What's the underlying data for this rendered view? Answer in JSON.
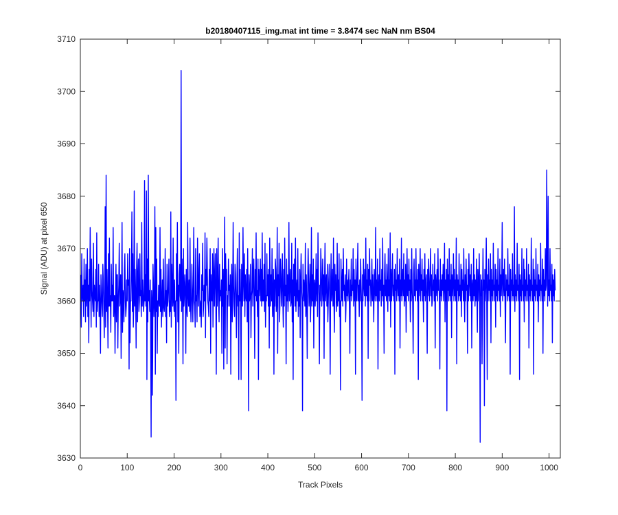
{
  "chart_data": {
    "type": "line",
    "title": "b20180407115_img.mat int time = 3.8474 sec  NaN nm BS04",
    "xlabel": "Track Pixels",
    "ylabel": "Signal (ADU) at pixel 650",
    "xlim": [
      0,
      1024
    ],
    "ylim": [
      3630,
      3710
    ],
    "xticks": [
      0,
      100,
      200,
      300,
      400,
      500,
      600,
      700,
      800,
      900,
      1000
    ],
    "yticks": [
      3630,
      3640,
      3650,
      3660,
      3670,
      3680,
      3690,
      3700,
      3710
    ],
    "grid": false,
    "legend": "none",
    "series": [
      {
        "color": "#0000ff",
        "x_start": 1,
        "x_step": 1,
        "values": [
          3665,
          3655,
          3669,
          3661,
          3660,
          3663,
          3657,
          3668,
          3660,
          3664,
          3656,
          3667,
          3659,
          3661,
          3670,
          3657,
          3663,
          3652,
          3666,
          3660,
          3674,
          3664,
          3655,
          3668,
          3662,
          3660,
          3658,
          3671,
          3657,
          3663,
          3661,
          3660,
          3666,
          3655,
          3673,
          3658,
          3660,
          3660,
          3667,
          3657,
          3663,
          3659,
          3650,
          3665,
          3662,
          3659,
          3657,
          3667,
          3664,
          3659,
          3653,
          3661,
          3678,
          3655,
          3684,
          3658,
          3666,
          3660,
          3651,
          3669,
          3659,
          3672,
          3659,
          3661,
          3654,
          3667,
          3660,
          3663,
          3660,
          3674,
          3657,
          3661,
          3661,
          3650,
          3660,
          3667,
          3656,
          3665,
          3665,
          3651,
          3660,
          3663,
          3671,
          3659,
          3661,
          3665,
          3649,
          3660,
          3675,
          3654,
          3662,
          3661,
          3656,
          3666,
          3669,
          3660,
          3657,
          3659,
          3664,
          3660,
          3669,
          3663,
          3664,
          3647,
          3670,
          3652,
          3660,
          3660,
          3666,
          3677,
          3658,
          3669,
          3655,
          3660,
          3681,
          3659,
          3666,
          3661,
          3651,
          3666,
          3671,
          3656,
          3664,
          3668,
          3658,
          3660,
          3669,
          3661,
          3662,
          3657,
          3675,
          3659,
          3664,
          3661,
          3658,
          3660,
          3683,
          3660,
          3665,
          3659,
          3681,
          3645,
          3668,
          3656,
          3684,
          3660,
          3662,
          3658,
          3664,
          3656,
          3634,
          3662,
          3660,
          3642,
          3667,
          3663,
          3657,
          3660,
          3678,
          3646,
          3674,
          3658,
          3668,
          3650,
          3660,
          3657,
          3663,
          3660,
          3659,
          3674,
          3658,
          3666,
          3655,
          3660,
          3664,
          3657,
          3668,
          3659,
          3658,
          3660,
          3670,
          3657,
          3662,
          3652,
          3667,
          3659,
          3660,
          3663,
          3668,
          3657,
          3660,
          3658,
          3677,
          3655,
          3667,
          3662,
          3659,
          3672,
          3660,
          3658,
          3664,
          3657,
          3660,
          3641,
          3669,
          3660,
          3675,
          3656,
          3663,
          3650,
          3665,
          3667,
          3661,
          3660,
          3704,
          3658,
          3668,
          3663,
          3648,
          3670,
          3659,
          3661,
          3665,
          3662,
          3650,
          3666,
          3659,
          3657,
          3675,
          3661,
          3659,
          3664,
          3658,
          3672,
          3660,
          3656,
          3660,
          3667,
          3661,
          3656,
          3663,
          3674,
          3660,
          3659,
          3655,
          3670,
          3660,
          3661,
          3656,
          3672,
          3663,
          3659,
          3666,
          3669,
          3657,
          3660,
          3659,
          3655,
          3665,
          3662,
          3671,
          3657,
          3659,
          3663,
          3660,
          3673,
          3653,
          3666,
          3663,
          3672,
          3665,
          3660,
          3659,
          3657,
          3666,
          3660,
          3670,
          3650,
          3665,
          3661,
          3660,
          3669,
          3655,
          3664,
          3670,
          3659,
          3663,
          3669,
          3662,
          3646,
          3670,
          3659,
          3663,
          3672,
          3660,
          3656,
          3667,
          3660,
          3662,
          3661,
          3664,
          3650,
          3670,
          3659,
          3666,
          3647,
          3663,
          3676,
          3651,
          3669,
          3662,
          3666,
          3648,
          3661,
          3659,
          3668,
          3662,
          3663,
          3659,
          3665,
          3646,
          3662,
          3667,
          3656,
          3660,
          3675,
          3663,
          3659,
          3657,
          3667,
          3665,
          3660,
          3653,
          3663,
          3670,
          3659,
          3661,
          3645,
          3673,
          3660,
          3666,
          3659,
          3645,
          3667,
          3662,
          3659,
          3674,
          3664,
          3660,
          3669,
          3657,
          3665,
          3661,
          3660,
          3666,
          3656,
          3670,
          3659,
          3639,
          3665,
          3660,
          3661,
          3667,
          3653,
          3661,
          3662,
          3670,
          3659,
          3665,
          3668,
          3660,
          3649,
          3666,
          3661,
          3673,
          3660,
          3662,
          3657,
          3668,
          3645,
          3666,
          3661,
          3663,
          3668,
          3660,
          3666,
          3659,
          3673,
          3660,
          3664,
          3660,
          3667,
          3658,
          3671,
          3655,
          3661,
          3660,
          3669,
          3661,
          3665,
          3659,
          3666,
          3651,
          3672,
          3664,
          3659,
          3665,
          3660,
          3670,
          3657,
          3660,
          3666,
          3646,
          3664,
          3659,
          3668,
          3666,
          3658,
          3660,
          3674,
          3650,
          3665,
          3661,
          3671,
          3656,
          3660,
          3668,
          3665,
          3659,
          3663,
          3669,
          3660,
          3655,
          3666,
          3659,
          3672,
          3661,
          3663,
          3648,
          3668,
          3660,
          3665,
          3658,
          3662,
          3675,
          3660,
          3663,
          3666,
          3659,
          3660,
          3671,
          3656,
          3664,
          3645,
          3667,
          3661,
          3668,
          3659,
          3672,
          3658,
          3662,
          3664,
          3660,
          3670,
          3657,
          3662,
          3659,
          3666,
          3653,
          3664,
          3669,
          3662,
          3660,
          3639,
          3667,
          3660,
          3664,
          3662,
          3659,
          3671,
          3657,
          3665,
          3660,
          3649,
          3663,
          3670,
          3664,
          3659,
          3662,
          3667,
          3656,
          3661,
          3674,
          3659,
          3665,
          3660,
          3668,
          3651,
          3663,
          3664,
          3659,
          3662,
          3669,
          3660,
          3666,
          3657,
          3673,
          3664,
          3661,
          3648,
          3663,
          3660,
          3670,
          3666,
          3659,
          3662,
          3668,
          3660,
          3665,
          3649,
          3664,
          3671,
          3660,
          3663,
          3665,
          3659,
          3667,
          3656,
          3660,
          3664,
          3667,
          3660,
          3646,
          3663,
          3669,
          3660,
          3662,
          3666,
          3659,
          3672,
          3660,
          3654,
          3667,
          3662,
          3665,
          3658,
          3660,
          3671,
          3659,
          3664,
          3660,
          3669,
          3657,
          3660,
          3643,
          3668,
          3663,
          3660,
          3666,
          3659,
          3670,
          3662,
          3663,
          3660,
          3665,
          3656,
          3660,
          3668,
          3661,
          3664,
          3660,
          3663,
          3666,
          3659,
          3650,
          3664,
          3661,
          3668,
          3660,
          3663,
          3662,
          3670,
          3659,
          3666,
          3660,
          3664,
          3646,
          3668,
          3662,
          3660,
          3665,
          3671,
          3660,
          3663,
          3657,
          3664,
          3660,
          3668,
          3663,
          3659,
          3641,
          3665,
          3660,
          3668,
          3663,
          3661,
          3666,
          3659,
          3672,
          3661,
          3664,
          3660,
          3667,
          3649,
          3666,
          3660,
          3670,
          3663,
          3664,
          3659,
          3662,
          3668,
          3660,
          3665,
          3661,
          3656,
          3666,
          3663,
          3660,
          3674,
          3661,
          3664,
          3660,
          3668,
          3647,
          3663,
          3665,
          3660,
          3670,
          3662,
          3664,
          3659,
          3666,
          3661,
          3672,
          3660,
          3663,
          3650,
          3665,
          3669,
          3661,
          3664,
          3660,
          3667,
          3662,
          3658,
          3670,
          3661,
          3664,
          3660,
          3673,
          3655,
          3666,
          3660,
          3664,
          3669,
          3661,
          3663,
          3660,
          3666,
          3646,
          3667,
          3662,
          3664,
          3660,
          3670,
          3663,
          3661,
          3665,
          3660,
          3668,
          3651,
          3664,
          3661,
          3672,
          3660,
          3663,
          3666,
          3661,
          3669,
          3659,
          3664,
          3660,
          3667,
          3654,
          3663,
          3670,
          3661,
          3665,
          3660,
          3668,
          3662,
          3664,
          3656,
          3666,
          3660,
          3670,
          3662,
          3660,
          3650,
          3665,
          3668,
          3661,
          3664,
          3660,
          3670,
          3662,
          3664,
          3660,
          3666,
          3645,
          3667,
          3661,
          3663,
          3670,
          3660,
          3665,
          3662,
          3668,
          3660,
          3664,
          3656,
          3666,
          3661,
          3669,
          3660,
          3663,
          3665,
          3660,
          3650,
          3666,
          3661,
          3668,
          3663,
          3660,
          3664,
          3670,
          3661,
          3665,
          3659,
          3660,
          3667,
          3662,
          3664,
          3660,
          3669,
          3651,
          3665,
          3661,
          3663,
          3666,
          3660,
          3670,
          3662,
          3664,
          3660,
          3647,
          3668,
          3661,
          3664,
          3660,
          3665,
          3662,
          3667,
          3660,
          3663,
          3671,
          3656,
          3664,
          3660,
          3666,
          3639,
          3668,
          3662,
          3665,
          3660,
          3670,
          3661,
          3664,
          3660,
          3667,
          3653,
          3665,
          3661,
          3663,
          3669,
          3660,
          3666,
          3661,
          3664,
          3660,
          3672,
          3648,
          3665,
          3662,
          3664,
          3660,
          3669,
          3661,
          3663,
          3660,
          3667,
          3657,
          3666,
          3662,
          3664,
          3660,
          3670,
          3661,
          3656,
          3665,
          3660,
          3668,
          3662,
          3663,
          3650,
          3666,
          3660,
          3669,
          3664,
          3661,
          3665,
          3660,
          3667,
          3651,
          3663,
          3664,
          3660,
          3670,
          3661,
          3665,
          3659,
          3664,
          3660,
          3668,
          3662,
          3654,
          3666,
          3660,
          3663,
          3669,
          3660,
          3633,
          3665,
          3661,
          3664,
          3648,
          3660,
          3670,
          3662,
          3664,
          3640,
          3666,
          3660,
          3663,
          3672,
          3661,
          3645,
          3665,
          3660,
          3668,
          3662,
          3664,
          3660,
          3669,
          3652,
          3666,
          3661,
          3664,
          3660,
          3671,
          3662,
          3663,
          3660,
          3667,
          3655,
          3666,
          3661,
          3664,
          3660,
          3670,
          3662,
          3663,
          3660,
          3668,
          3657,
          3665,
          3661,
          3664,
          3675,
          3660,
          3663,
          3666,
          3661,
          3668,
          3660,
          3652,
          3665,
          3662,
          3664,
          3660,
          3670,
          3661,
          3663,
          3660,
          3667,
          3646,
          3666,
          3662,
          3664,
          3660,
          3669,
          3661,
          3663,
          3660,
          3678,
          3658,
          3665,
          3661,
          3664,
          3660,
          3671,
          3662,
          3663,
          3660,
          3667,
          3645,
          3665,
          3661,
          3664,
          3660,
          3670,
          3662,
          3663,
          3660,
          3668,
          3656,
          3666,
          3661,
          3664,
          3660,
          3670,
          3662,
          3663,
          3660,
          3667,
          3651,
          3665,
          3661,
          3664,
          3660,
          3672,
          3662,
          3663,
          3660,
          3668,
          3646,
          3666,
          3661,
          3664,
          3660,
          3670,
          3662,
          3663,
          3660,
          3667,
          3656,
          3665,
          3661,
          3664,
          3660,
          3671,
          3662,
          3663,
          3660,
          3668,
          3650,
          3666,
          3661,
          3664,
          3660,
          3670,
          3662,
          3663,
          3685,
          3667,
          3659,
          3680,
          3661,
          3664,
          3660,
          3670,
          3662,
          3663,
          3660,
          3667,
          3652,
          3665,
          3661,
          3664,
          3660,
          3666,
          3662
        ]
      }
    ]
  }
}
